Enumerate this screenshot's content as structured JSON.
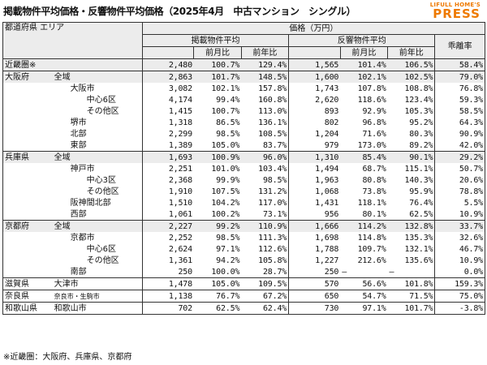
{
  "title": "掲載物件平均価格・反響物件平均価格（2025年4月　中古マンション　シングル）",
  "brand": {
    "small": "LIFULL HOME'S",
    "big": "PRESS"
  },
  "header": {
    "area": "都道府県 エリア",
    "price": "価格（万円）",
    "listing": "掲載物件平均",
    "response": "反響物件平均",
    "gap": "乖離率",
    "mom": "前月比",
    "yoy": "前年比"
  },
  "rows": [
    {
      "pref": "近畿圏※",
      "area": "",
      "lp": "2,480",
      "lm": "100.7%",
      "ly": "129.4%",
      "rp": "1,565",
      "rm": "101.4%",
      "ry": "106.5%",
      "gap": "58.4%"
    },
    {
      "pref": "大阪府",
      "area": "全域",
      "lp": "2,863",
      "lm": "101.7%",
      "ly": "148.5%",
      "rp": "1,600",
      "rm": "102.1%",
      "ry": "102.5%",
      "gap": "79.0%"
    },
    {
      "pref": "",
      "area": "大阪市",
      "lp": "3,082",
      "lm": "102.1%",
      "ly": "157.8%",
      "rp": "1,743",
      "rm": "107.8%",
      "ry": "108.8%",
      "gap": "76.8%"
    },
    {
      "pref": "",
      "area": "中心6区",
      "lp": "4,174",
      "lm": "99.4%",
      "ly": "160.8%",
      "rp": "2,620",
      "rm": "118.6%",
      "ry": "123.4%",
      "gap": "59.3%"
    },
    {
      "pref": "",
      "area": "その他区",
      "lp": "1,415",
      "lm": "100.7%",
      "ly": "113.0%",
      "rp": "893",
      "rm": "92.9%",
      "ry": "105.3%",
      "gap": "58.5%"
    },
    {
      "pref": "",
      "area": "堺市",
      "lp": "1,318",
      "lm": "86.5%",
      "ly": "136.1%",
      "rp": "802",
      "rm": "96.8%",
      "ry": "95.2%",
      "gap": "64.3%"
    },
    {
      "pref": "",
      "area": "北部",
      "lp": "2,299",
      "lm": "98.5%",
      "ly": "108.5%",
      "rp": "1,204",
      "rm": "71.6%",
      "ry": "80.3%",
      "gap": "90.9%"
    },
    {
      "pref": "",
      "area": "東部",
      "lp": "1,389",
      "lm": "105.0%",
      "ly": "83.7%",
      "rp": "979",
      "rm": "173.0%",
      "ry": "89.2%",
      "gap": "42.0%"
    },
    {
      "pref": "兵庫県",
      "area": "全域",
      "lp": "1,693",
      "lm": "100.9%",
      "ly": "96.0%",
      "rp": "1,310",
      "rm": "85.4%",
      "ry": "90.1%",
      "gap": "29.2%"
    },
    {
      "pref": "",
      "area": "神戸市",
      "lp": "2,251",
      "lm": "101.0%",
      "ly": "103.4%",
      "rp": "1,494",
      "rm": "68.7%",
      "ry": "115.1%",
      "gap": "50.7%"
    },
    {
      "pref": "",
      "area": "中心3区",
      "lp": "2,368",
      "lm": "99.9%",
      "ly": "98.5%",
      "rp": "1,963",
      "rm": "80.8%",
      "ry": "140.3%",
      "gap": "20.6%"
    },
    {
      "pref": "",
      "area": "その他区",
      "lp": "1,910",
      "lm": "107.5%",
      "ly": "131.2%",
      "rp": "1,068",
      "rm": "73.8%",
      "ry": "95.9%",
      "gap": "78.8%"
    },
    {
      "pref": "",
      "area": "阪神間北部",
      "lp": "1,510",
      "lm": "104.2%",
      "ly": "117.0%",
      "rp": "1,431",
      "rm": "118.1%",
      "ry": "76.4%",
      "gap": "5.5%"
    },
    {
      "pref": "",
      "area": "西部",
      "lp": "1,061",
      "lm": "100.2%",
      "ly": "73.1%",
      "rp": "956",
      "rm": "80.1%",
      "ry": "62.5%",
      "gap": "10.9%"
    },
    {
      "pref": "京都府",
      "area": "全域",
      "lp": "2,227",
      "lm": "99.2%",
      "ly": "110.9%",
      "rp": "1,666",
      "rm": "114.2%",
      "ry": "132.8%",
      "gap": "33.7%"
    },
    {
      "pref": "",
      "area": "京都市",
      "lp": "2,252",
      "lm": "98.5%",
      "ly": "111.3%",
      "rp": "1,698",
      "rm": "114.8%",
      "ry": "135.3%",
      "gap": "32.6%"
    },
    {
      "pref": "",
      "area": "中心6区",
      "lp": "2,624",
      "lm": "97.1%",
      "ly": "112.6%",
      "rp": "1,788",
      "rm": "109.7%",
      "ry": "132.1%",
      "gap": "46.7%"
    },
    {
      "pref": "",
      "area": "その他区",
      "lp": "1,361",
      "lm": "94.2%",
      "ly": "105.8%",
      "rp": "1,227",
      "rm": "212.6%",
      "ry": "135.6%",
      "gap": "10.9%"
    },
    {
      "pref": "",
      "area": "南部",
      "lp": "250",
      "lm": "100.0%",
      "ly": "28.7%",
      "rp": "250",
      "rm": "–",
      "ry": "–",
      "gap": "0.0%"
    },
    {
      "pref": "滋賀県",
      "area": "大津市",
      "lp": "1,478",
      "lm": "105.0%",
      "ly": "109.5%",
      "rp": "570",
      "rm": "56.6%",
      "ry": "101.8%",
      "gap": "159.3%"
    },
    {
      "pref": "奈良県",
      "area": "奈良市・生駒市",
      "lp": "1,138",
      "lm": "76.7%",
      "ly": "67.2%",
      "rp": "650",
      "rm": "54.7%",
      "ry": "71.5%",
      "gap": "75.0%"
    },
    {
      "pref": "和歌山県",
      "area": "和歌山市",
      "lp": "702",
      "lm": "62.5%",
      "ly": "62.4%",
      "rp": "730",
      "rm": "97.1%",
      "ry": "101.7%",
      "gap": "-3.8%"
    }
  ],
  "footnote": "※近畿圏：大阪府、兵庫県、京都府"
}
